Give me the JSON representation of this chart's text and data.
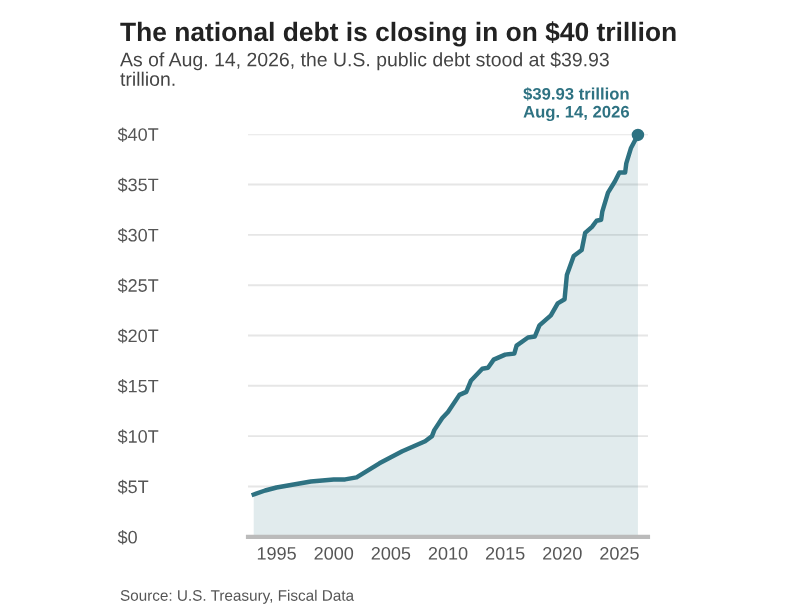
{
  "chart_data": {
    "type": "area",
    "title": "The national debt is closing in on $40 trillion",
    "subtitle": "As of Aug. 14, 2026, the U.S. public debt stood at $39.93\ntrillion.",
    "x": [
      1993.0,
      1994.0,
      1995.0,
      1996.0,
      1997.0,
      1998.0,
      1999.0,
      2000.0,
      2001.0,
      2002.0,
      2003.0,
      2004.0,
      2005.0,
      2006.0,
      2007.0,
      2008.0,
      2008.6,
      2008.8,
      2009.5,
      2010.0,
      2011.0,
      2011.6,
      2012.0,
      2013.0,
      2013.5,
      2014.0,
      2015.0,
      2015.8,
      2016.0,
      2017.0,
      2017.6,
      2018.0,
      2019.0,
      2019.6,
      2020.2,
      2020.4,
      2021.0,
      2021.7,
      2022.0,
      2022.6,
      2023.0,
      2023.4,
      2023.5,
      2024.0,
      2024.6,
      2025.0,
      2025.5,
      2025.6,
      2026.0,
      2026.62
    ],
    "series": [
      {
        "color": "#2e7282",
        "values": [
          4.2,
          4.6,
          4.9,
          5.1,
          5.3,
          5.5,
          5.6,
          5.7,
          5.7,
          5.9,
          6.6,
          7.3,
          7.9,
          8.5,
          9.0,
          9.5,
          10.0,
          10.6,
          11.8,
          12.4,
          14.1,
          14.4,
          15.5,
          16.7,
          16.8,
          17.6,
          18.1,
          18.2,
          19.0,
          19.8,
          19.9,
          21.0,
          22.0,
          23.2,
          23.6,
          26.0,
          27.9,
          28.5,
          30.2,
          30.8,
          31.4,
          31.5,
          32.3,
          34.2,
          35.3,
          36.2,
          36.2,
          37.1,
          38.6,
          39.93
        ]
      }
    ],
    "ylim": [
      0,
      40
    ],
    "yticks": [
      {
        "value": 0,
        "label": "$0"
      },
      {
        "value": 5,
        "label": "$5T"
      },
      {
        "value": 10,
        "label": "$10T"
      },
      {
        "value": 15,
        "label": "$15T"
      },
      {
        "value": 20,
        "label": "$20T"
      },
      {
        "value": 25,
        "label": "$25T"
      },
      {
        "value": 30,
        "label": "$30T"
      },
      {
        "value": 35,
        "label": "$35T"
      },
      {
        "value": 40,
        "label": "$40T"
      }
    ],
    "xlim": [
      1992.5,
      2027.5
    ],
    "xticks": [
      1995,
      2000,
      2005,
      2010,
      2015,
      2020,
      2025
    ],
    "grid": "y",
    "marker": "none",
    "annotations": [
      {
        "text": "$39.93 trillion\nAug. 14, 2026",
        "x": 2026.62,
        "y": 39.93
      },
      "Source: U.S. Treasury, Fiscal Data"
    ]
  }
}
